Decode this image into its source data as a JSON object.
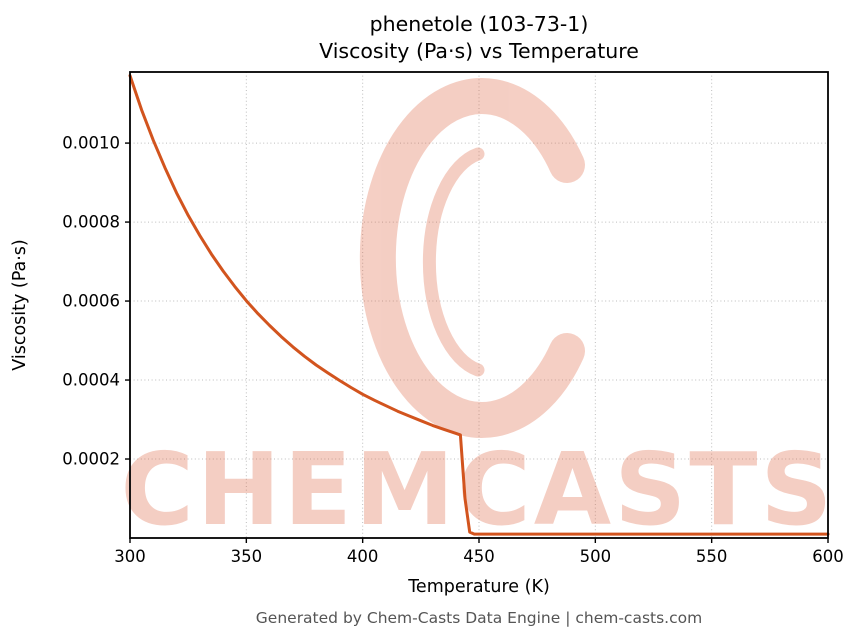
{
  "title_line1": "phenetole (103-73-1)",
  "title_line2": "Viscosity (Pa·s) vs Temperature",
  "footer": "Generated by Chem-Casts Data Engine | chem-casts.com",
  "watermark": {
    "text": "CHEMCASTS",
    "color": "#dd5f3c",
    "opacity": 0.3
  },
  "chart_data": {
    "type": "line",
    "title": "phenetole (103-73-1) — Viscosity (Pa·s) vs Temperature",
    "xlabel": "Temperature (K)",
    "ylabel": "Viscosity (Pa·s)",
    "xlim": [
      300,
      600
    ],
    "ylim": [
      0,
      0.00118
    ],
    "grid": true,
    "legend": false,
    "xticks": [
      300,
      350,
      400,
      450,
      500,
      550,
      600
    ],
    "xtick_labels": [
      "300",
      "350",
      "400",
      "450",
      "500",
      "550",
      "600"
    ],
    "yticks": [
      0.0002,
      0.0004,
      0.0006,
      0.0008,
      0.001
    ],
    "ytick_labels": [
      "0.0002",
      "0.0004",
      "0.0006",
      "0.0008",
      "0.0010"
    ],
    "series": [
      {
        "name": "viscosity",
        "color": "#d2541e",
        "x": [
          300,
          305,
          310,
          315,
          320,
          325,
          330,
          335,
          340,
          345,
          350,
          355,
          360,
          365,
          370,
          375,
          380,
          385,
          390,
          395,
          400,
          405,
          410,
          415,
          420,
          425,
          430,
          435,
          440,
          442,
          444,
          446,
          448,
          460,
          480,
          500,
          520,
          540,
          560,
          580,
          600
        ],
        "y": [
          0.001171,
          0.001084,
          0.001007,
          0.000938,
          0.000874,
          0.000817,
          0.000766,
          0.000719,
          0.000676,
          0.000637,
          0.000601,
          0.000568,
          0.000538,
          0.00051,
          0.000484,
          0.00046,
          0.000438,
          0.000418,
          0.000399,
          0.000381,
          0.000364,
          0.000349,
          0.000335,
          0.000321,
          0.000309,
          0.000297,
          0.000285,
          0.000275,
          0.000265,
          0.000261,
          0.0001,
          1.5e-05,
          1e-05,
          1e-05,
          1e-05,
          1e-05,
          1e-05,
          1e-05,
          1e-05,
          1e-05,
          1e-05
        ]
      }
    ]
  }
}
